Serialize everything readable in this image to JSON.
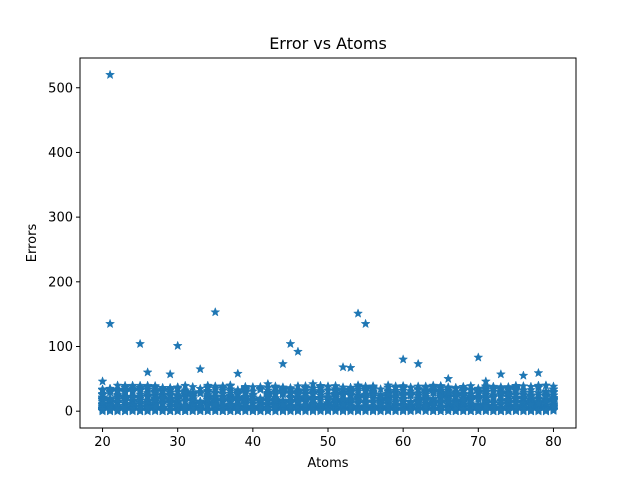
{
  "chart_data": {
    "type": "scatter",
    "title": "Error vs Atoms",
    "xlabel": "Atoms",
    "ylabel": "Errors",
    "xlim": [
      17.0,
      83.0
    ],
    "ylim": [
      -26,
      546
    ],
    "xticks": [
      20,
      30,
      40,
      50,
      60,
      70,
      80
    ],
    "yticks": [
      0,
      100,
      200,
      300,
      400,
      500
    ],
    "marker": "star",
    "color": "#1f77b4",
    "grid": false,
    "legend": "none",
    "outliers": [
      {
        "x": 21,
        "y": 520
      },
      {
        "x": 21,
        "y": 135
      },
      {
        "x": 25,
        "y": 104
      },
      {
        "x": 30,
        "y": 101
      },
      {
        "x": 35,
        "y": 153
      },
      {
        "x": 54,
        "y": 151
      },
      {
        "x": 55,
        "y": 135
      },
      {
        "x": 45,
        "y": 104
      },
      {
        "x": 46,
        "y": 92
      },
      {
        "x": 60,
        "y": 80
      },
      {
        "x": 70,
        "y": 83
      },
      {
        "x": 62,
        "y": 73
      },
      {
        "x": 44,
        "y": 73
      },
      {
        "x": 52,
        "y": 68
      },
      {
        "x": 53,
        "y": 67
      },
      {
        "x": 33,
        "y": 65
      },
      {
        "x": 26,
        "y": 60
      },
      {
        "x": 29,
        "y": 57
      },
      {
        "x": 38,
        "y": 58
      },
      {
        "x": 78,
        "y": 59
      },
      {
        "x": 73,
        "y": 57
      },
      {
        "x": 76,
        "y": 55
      },
      {
        "x": 20,
        "y": 46
      },
      {
        "x": 66,
        "y": 50
      },
      {
        "x": 71,
        "y": 46
      },
      {
        "x": 42,
        "y": 42
      },
      {
        "x": 48,
        "y": 42
      },
      {
        "x": 58,
        "y": 40
      },
      {
        "x": 64,
        "y": 38
      },
      {
        "x": 80,
        "y": 34
      }
    ],
    "bulk": {
      "x_range": [
        20,
        80
      ],
      "y_range": [
        0,
        40
      ],
      "points_per_atom": 38,
      "seed": 7
    }
  }
}
